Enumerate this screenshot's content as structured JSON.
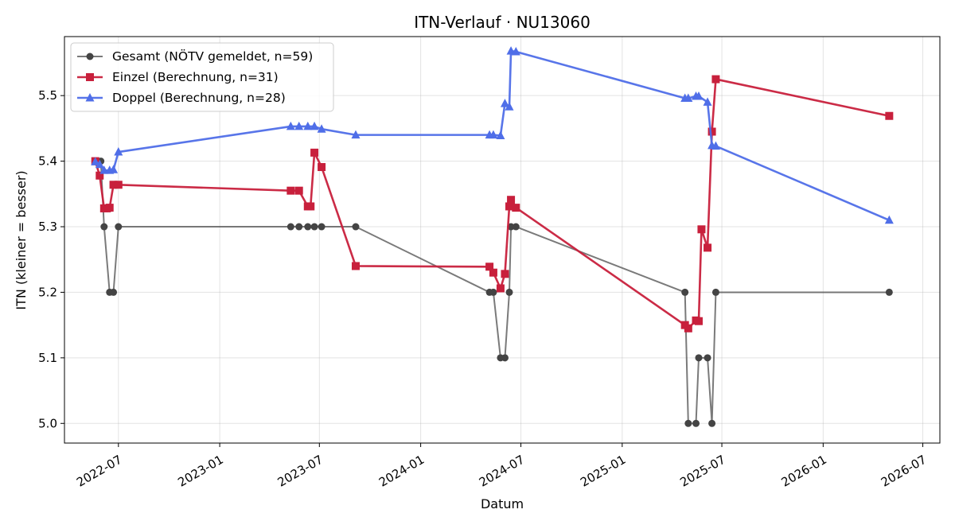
{
  "chart_data": {
    "type": "line",
    "title": "ITN-Verlauf · NU13060",
    "xlabel": "Datum",
    "ylabel": "ITN  (kleiner = besser)",
    "x_axis": {
      "kind": "date",
      "range": [
        "2022-03-25",
        "2026-08-01"
      ],
      "ticks": [
        "2022-07-01",
        "2023-01-01",
        "2023-07-01",
        "2024-01-01",
        "2024-07-01",
        "2025-01-01",
        "2025-07-01",
        "2026-01-01",
        "2026-07-01"
      ],
      "tick_labels": [
        "2022-07",
        "2023-01",
        "2023-07",
        "2024-01",
        "2024-07",
        "2025-01",
        "2025-07",
        "2026-01",
        "2026-07"
      ]
    },
    "y_axis": {
      "range": [
        4.97,
        5.59
      ],
      "ticks": [
        5.0,
        5.1,
        5.2,
        5.3,
        5.4,
        5.5
      ],
      "tick_labels": [
        "5.0",
        "5.1",
        "5.2",
        "5.3",
        "5.4",
        "5.5"
      ]
    },
    "grid": true,
    "legend_position": "top-left",
    "series": [
      {
        "name": "Gesamt (NÖTV gemeldet, n=59)",
        "color": "#555555",
        "marker": "circle",
        "points": [
          [
            "2022-05-20",
            5.4
          ],
          [
            "2022-05-30",
            5.4
          ],
          [
            "2022-06-05",
            5.3
          ],
          [
            "2022-06-15",
            5.2
          ],
          [
            "2022-06-22",
            5.2
          ],
          [
            "2022-07-01",
            5.3
          ],
          [
            "2023-05-10",
            5.3
          ],
          [
            "2023-05-25",
            5.3
          ],
          [
            "2023-06-10",
            5.3
          ],
          [
            "2023-06-22",
            5.3
          ],
          [
            "2023-07-05",
            5.3
          ],
          [
            "2023-09-05",
            5.3
          ],
          [
            "2024-05-05",
            5.2
          ],
          [
            "2024-05-12",
            5.2
          ],
          [
            "2024-05-25",
            5.1
          ],
          [
            "2024-06-02",
            5.1
          ],
          [
            "2024-06-10",
            5.2
          ],
          [
            "2024-06-13",
            5.3
          ],
          [
            "2024-06-22",
            5.3
          ],
          [
            "2025-04-25",
            5.2
          ],
          [
            "2025-05-01",
            5.0
          ],
          [
            "2025-05-15",
            5.0
          ],
          [
            "2025-05-20",
            5.1
          ],
          [
            "2025-06-05",
            5.1
          ],
          [
            "2025-06-13",
            5.0
          ],
          [
            "2025-06-20",
            5.2
          ],
          [
            "2026-05-01",
            5.2
          ]
        ]
      },
      {
        "name": "Einzel (Berechnung, n=31)",
        "color": "#c8203c",
        "marker": "square",
        "points": [
          [
            "2022-05-20",
            5.4
          ],
          [
            "2022-05-28",
            5.378
          ],
          [
            "2022-06-05",
            5.328
          ],
          [
            "2022-06-10",
            5.328
          ],
          [
            "2022-06-15",
            5.329
          ],
          [
            "2022-06-22",
            5.364
          ],
          [
            "2022-07-01",
            5.364
          ],
          [
            "2023-05-10",
            5.355
          ],
          [
            "2023-05-25",
            5.355
          ],
          [
            "2023-06-10",
            5.331
          ],
          [
            "2023-06-15",
            5.331
          ],
          [
            "2023-06-22",
            5.413
          ],
          [
            "2023-07-05",
            5.391
          ],
          [
            "2023-09-05",
            5.24
          ],
          [
            "2024-05-05",
            5.239
          ],
          [
            "2024-05-12",
            5.23
          ],
          [
            "2024-05-25",
            5.206
          ],
          [
            "2024-06-02",
            5.228
          ],
          [
            "2024-06-10",
            5.331
          ],
          [
            "2024-06-13",
            5.341
          ],
          [
            "2024-06-22",
            5.329
          ],
          [
            "2025-04-25",
            5.15
          ],
          [
            "2025-05-01",
            5.145
          ],
          [
            "2025-05-15",
            5.157
          ],
          [
            "2025-05-20",
            5.156
          ],
          [
            "2025-05-25",
            5.296
          ],
          [
            "2025-06-05",
            5.268
          ],
          [
            "2025-06-13",
            5.445
          ],
          [
            "2025-06-20",
            5.525
          ],
          [
            "2026-05-01",
            5.469
          ]
        ]
      },
      {
        "name": "Doppel (Berechnung, n=28)",
        "color": "#4f6ee8",
        "marker": "triangle",
        "points": [
          [
            "2022-05-20",
            5.399
          ],
          [
            "2022-05-28",
            5.395
          ],
          [
            "2022-06-05",
            5.386
          ],
          [
            "2022-06-15",
            5.386
          ],
          [
            "2022-06-22",
            5.387
          ],
          [
            "2022-07-01",
            5.414
          ],
          [
            "2023-05-10",
            5.453
          ],
          [
            "2023-05-25",
            5.453
          ],
          [
            "2023-06-10",
            5.453
          ],
          [
            "2023-06-22",
            5.453
          ],
          [
            "2023-07-05",
            5.449
          ],
          [
            "2023-09-05",
            5.44
          ],
          [
            "2024-05-05",
            5.44
          ],
          [
            "2024-05-12",
            5.44
          ],
          [
            "2024-05-25",
            5.439
          ],
          [
            "2024-06-02",
            5.488
          ],
          [
            "2024-06-10",
            5.483
          ],
          [
            "2024-06-13",
            5.568
          ],
          [
            "2024-06-22",
            5.567
          ],
          [
            "2025-04-25",
            5.496
          ],
          [
            "2025-05-01",
            5.496
          ],
          [
            "2025-05-15",
            5.499
          ],
          [
            "2025-05-20",
            5.499
          ],
          [
            "2025-06-05",
            5.49
          ],
          [
            "2025-06-13",
            5.424
          ],
          [
            "2025-06-20",
            5.423
          ],
          [
            "2026-05-01",
            5.31
          ]
        ]
      }
    ]
  }
}
